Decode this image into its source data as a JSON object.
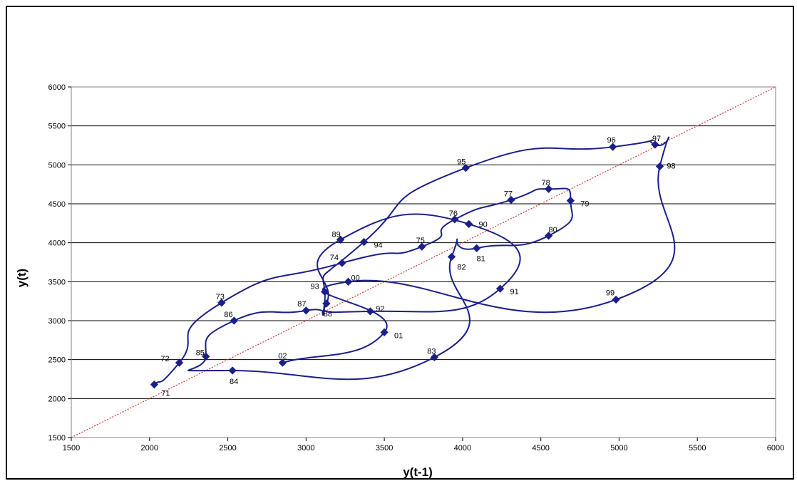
{
  "chart_data": {
    "type": "scatter",
    "title": "",
    "xlabel": "y(t-1)",
    "ylabel": "y(t)",
    "xlim": [
      1500,
      6000
    ],
    "ylim": [
      1500,
      6000
    ],
    "xticks": [
      1500,
      2000,
      2500,
      3000,
      3500,
      4000,
      4500,
      5000,
      5500,
      6000
    ],
    "yticks": [
      1500,
      2000,
      2500,
      3000,
      3500,
      4000,
      4500,
      5000,
      5500,
      6000
    ],
    "grid": "horizontal",
    "legend": "none",
    "series": [
      {
        "values": [
          {
            "label": "71",
            "x": 2030,
            "y": 2180
          },
          {
            "label": "72",
            "x": 2190,
            "y": 2460
          },
          {
            "label": "73",
            "x": 2460,
            "y": 3230
          },
          {
            "label": "74",
            "x": 3230,
            "y": 3740
          },
          {
            "label": "75",
            "x": 3740,
            "y": 3950
          },
          {
            "label": "76",
            "x": 3950,
            "y": 4300
          },
          {
            "label": "77",
            "x": 4310,
            "y": 4550
          },
          {
            "label": "78",
            "x": 4550,
            "y": 4690
          },
          {
            "label": "79",
            "x": 4690,
            "y": 4540
          },
          {
            "label": "80",
            "x": 4550,
            "y": 4090
          },
          {
            "label": "81",
            "x": 4090,
            "y": 3930
          },
          {
            "label": "82",
            "x": 3930,
            "y": 3820
          },
          {
            "label": "83",
            "x": 3820,
            "y": 2530
          },
          {
            "label": "84",
            "x": 2530,
            "y": 2360
          },
          {
            "label": "85",
            "x": 2360,
            "y": 2540
          },
          {
            "label": "86",
            "x": 2540,
            "y": 3000
          },
          {
            "label": "87",
            "x": 3000,
            "y": 3130
          },
          {
            "label": "88",
            "x": 3130,
            "y": 3220
          },
          {
            "label": "89",
            "x": 3220,
            "y": 4040
          },
          {
            "label": "90",
            "x": 4040,
            "y": 4240
          },
          {
            "label": "91",
            "x": 4240,
            "y": 3410
          },
          {
            "label": "92",
            "x": 3410,
            "y": 3120
          },
          {
            "label": "93",
            "x": 3120,
            "y": 3370
          },
          {
            "label": "94",
            "x": 3370,
            "y": 4010
          },
          {
            "label": "95",
            "x": 4020,
            "y": 4960
          },
          {
            "label": "96",
            "x": 4960,
            "y": 5230
          },
          {
            "label": "97",
            "x": 5230,
            "y": 5260
          },
          {
            "label": "98",
            "x": 5260,
            "y": 4980
          },
          {
            "label": "99",
            "x": 4980,
            "y": 3270
          },
          {
            "label": "00",
            "x": 3270,
            "y": 3500
          },
          {
            "label": "01",
            "x": 3500,
            "y": 2850
          },
          {
            "label": "02",
            "x": 2850,
            "y": 2460
          }
        ]
      }
    ],
    "reference_line": {
      "from": [
        1500,
        1500
      ],
      "to": [
        6000,
        6000
      ]
    },
    "colors": {
      "series": "#1a1f8a",
      "reference": "#e03030",
      "grid": "#000000"
    }
  }
}
